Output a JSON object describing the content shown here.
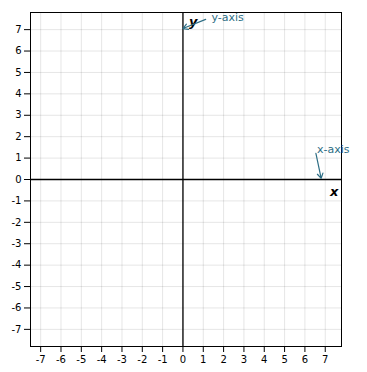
{
  "chart_data": {
    "type": "plane",
    "xlim": [
      -7.5,
      7.8
    ],
    "ylim": [
      -7.8,
      7.8
    ],
    "xticks": [
      -7,
      -6,
      -5,
      -4,
      -3,
      -2,
      -1,
      0,
      1,
      2,
      3,
      4,
      5,
      6,
      7
    ],
    "yticks": [
      -7,
      -6,
      -5,
      -4,
      -3,
      -2,
      -1,
      0,
      1,
      2,
      3,
      4,
      5,
      6,
      7
    ],
    "grid": true,
    "xlabel": "x",
    "ylabel": "y",
    "annotations": [
      {
        "text": "y-axis",
        "x": 1.3,
        "y": 7.55,
        "arrow_x": 0,
        "arrow_y": 7.05,
        "color": "#2e6e85"
      },
      {
        "text": "x-axis",
        "x": 6.5,
        "y": 1.4,
        "arrow_x": 6.8,
        "arrow_y": 0.05,
        "color": "#2e6e85"
      }
    ]
  }
}
